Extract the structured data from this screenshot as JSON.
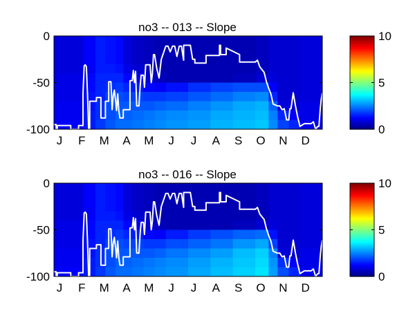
{
  "chart_data": [
    {
      "type": "heatmap",
      "title": "no3 -- 013 -- Slope",
      "months": [
        "J",
        "F",
        "M",
        "A",
        "M",
        "J",
        "J",
        "A",
        "S",
        "O",
        "N",
        "D"
      ],
      "ylim": [
        -100,
        0
      ],
      "yticks": [
        "0",
        "-50",
        "-100"
      ],
      "clim": [
        0,
        10
      ],
      "colorbar_ticks": [
        "10",
        "5",
        "0"
      ],
      "colormap": "jet",
      "columns": [
        {
          "start": 0.0,
          "values": [
            0.9,
            0.9,
            0.9,
            0.9,
            1.0,
            1.0,
            1.0,
            1.1,
            1.1,
            1.2
          ]
        },
        {
          "start": 1.3,
          "values": [
            1.2,
            1.2,
            1.2,
            1.2,
            1.3,
            1.3,
            1.4,
            1.4,
            1.5,
            1.5
          ]
        },
        {
          "start": 1.85,
          "values": [
            1.5,
            1.5,
            1.5,
            1.5,
            1.6,
            1.6,
            1.6,
            1.7,
            1.7,
            1.8
          ]
        },
        {
          "start": 2.3,
          "values": [
            1.4,
            1.4,
            1.4,
            1.5,
            1.6,
            1.7,
            1.9,
            2.0,
            2.0,
            2.1
          ]
        },
        {
          "start": 2.75,
          "values": [
            1.3,
            1.3,
            1.3,
            1.4,
            1.6,
            1.8,
            2.0,
            2.1,
            2.2,
            2.3
          ]
        },
        {
          "start": 3.1,
          "values": [
            0.9,
            0.9,
            0.9,
            1.0,
            1.3,
            1.6,
            1.9,
            2.1,
            2.2,
            2.3
          ]
        },
        {
          "start": 3.5,
          "values": [
            0.7,
            0.7,
            0.7,
            0.8,
            1.1,
            1.5,
            1.9,
            2.1,
            2.3,
            2.4
          ]
        },
        {
          "start": 4.0,
          "values": [
            0.6,
            0.6,
            0.6,
            0.6,
            0.8,
            1.3,
            1.8,
            2.1,
            2.4,
            2.5
          ]
        },
        {
          "start": 4.5,
          "values": [
            0.5,
            0.5,
            0.5,
            0.5,
            0.6,
            1.2,
            1.8,
            2.2,
            2.5,
            2.6
          ]
        },
        {
          "start": 5.0,
          "values": [
            0.5,
            0.5,
            0.5,
            0.5,
            0.5,
            1.4,
            1.9,
            2.3,
            2.6,
            2.7
          ]
        },
        {
          "start": 6.0,
          "values": [
            0.5,
            0.5,
            0.5,
            0.5,
            0.5,
            1.7,
            2.1,
            2.5,
            2.7,
            2.8
          ]
        },
        {
          "start": 7.0,
          "values": [
            0.5,
            0.5,
            0.5,
            0.5,
            0.5,
            1.9,
            2.3,
            2.7,
            2.9,
            3.0
          ]
        },
        {
          "start": 8.0,
          "values": [
            0.5,
            0.5,
            0.5,
            0.5,
            0.6,
            2.0,
            2.5,
            2.9,
            3.0,
            3.1
          ]
        },
        {
          "start": 9.0,
          "values": [
            0.6,
            0.6,
            0.6,
            0.6,
            0.8,
            2.0,
            2.6,
            3.0,
            3.1,
            3.2
          ]
        },
        {
          "start": 9.6,
          "values": [
            0.8,
            0.8,
            0.8,
            0.8,
            0.9,
            1.2,
            1.6,
            2.2,
            2.5,
            2.6
          ]
        },
        {
          "start": 10.0,
          "values": [
            0.8,
            0.8,
            0.8,
            0.8,
            0.8,
            0.8,
            0.8,
            0.9,
            1.6,
            1.9
          ]
        },
        {
          "start": 10.5,
          "values": [
            0.8,
            0.8,
            0.8,
            0.8,
            0.8,
            0.8,
            0.8,
            0.8,
            1.2,
            1.6
          ]
        },
        {
          "start": 11.0,
          "values": [
            0.9,
            0.9,
            0.9,
            0.9,
            0.9,
            0.9,
            0.9,
            1.0,
            1.0,
            1.1
          ]
        }
      ],
      "line": {
        "color": "#ffffff",
        "x": [
          0.0,
          0.1,
          0.1,
          0.15,
          0.15,
          0.75,
          0.75,
          1.1,
          1.1,
          1.3,
          1.3,
          1.35,
          1.4,
          1.45,
          1.5,
          1.55,
          1.6,
          1.6,
          1.9,
          1.9,
          2.1,
          2.1,
          2.2,
          2.3,
          2.3,
          2.45,
          2.45,
          2.55,
          2.6,
          2.65,
          2.7,
          2.75,
          2.8,
          2.85,
          2.9,
          2.95,
          3.0,
          3.1,
          3.1,
          3.4,
          3.4,
          3.5,
          3.55,
          3.6,
          3.65,
          3.7,
          3.8,
          3.85,
          3.9,
          4.0,
          4.05,
          4.1,
          4.2,
          4.3,
          4.35,
          4.4,
          4.45,
          4.5,
          4.6,
          4.7,
          4.75,
          4.8,
          5.0,
          5.1,
          5.2,
          5.3,
          5.4,
          5.5,
          5.6,
          5.7,
          5.8,
          5.8,
          6.1,
          6.2,
          6.3,
          6.3,
          6.8,
          6.8,
          7.4,
          7.4,
          7.45,
          7.45,
          7.7,
          7.7,
          8.3,
          8.3,
          9.0,
          9.1,
          9.2,
          9.3,
          9.4,
          9.5,
          9.6,
          9.7,
          9.8,
          10.0,
          10.1,
          10.2,
          10.3,
          10.4,
          10.5,
          10.55,
          10.6,
          10.7,
          10.8,
          10.9,
          11.0,
          11.2,
          11.3,
          11.4,
          11.5,
          11.6,
          11.7,
          11.8,
          11.85,
          11.9,
          11.95,
          12.0
        ],
        "y": [
          -95,
          -95,
          -100,
          -100,
          -96,
          -96,
          -100,
          -100,
          -96,
          -96,
          -62,
          -32,
          -31,
          -33,
          -62,
          -99,
          -99,
          -70,
          -70,
          -66,
          -66,
          -88,
          -88,
          -88,
          -70,
          -70,
          -49,
          -49,
          -79,
          -64,
          -58,
          -68,
          -80,
          -62,
          -80,
          -88,
          -88,
          -88,
          -79,
          -79,
          -48,
          -48,
          -37,
          -50,
          -38,
          -75,
          -75,
          -55,
          -42,
          -42,
          -55,
          -31,
          -31,
          -31,
          -50,
          -41,
          -20,
          -20,
          -35,
          -45,
          -35,
          -25,
          -11,
          -11,
          -17,
          -11,
          -11,
          -22,
          -11,
          -11,
          -26,
          -10,
          -10,
          -25,
          -25,
          -29,
          -29,
          -21,
          -21,
          -10,
          -10,
          -20,
          -20,
          -13,
          -20,
          -28,
          -28,
          -26,
          -33,
          -36,
          -39,
          -49,
          -56,
          -62,
          -73,
          -75,
          -75,
          -79,
          -78,
          -90,
          -90,
          -78,
          -78,
          -61,
          -75,
          -87,
          -97,
          -94,
          -94,
          -94,
          -94,
          -92,
          -100,
          -97,
          -97,
          -80,
          -68,
          -61,
          -61,
          -60
        ]
      }
    },
    {
      "type": "heatmap",
      "title": "no3 -- 016 -- Slope",
      "months": [
        "J",
        "F",
        "M",
        "A",
        "M",
        "J",
        "J",
        "A",
        "S",
        "O",
        "N",
        "D"
      ],
      "ylim": [
        -100,
        0
      ],
      "yticks": [
        "0",
        "-50",
        "-100"
      ],
      "clim": [
        0,
        10
      ],
      "colorbar_ticks": [
        "10",
        "5",
        "0"
      ],
      "colormap": "jet",
      "columns": [
        {
          "start": 0.0,
          "values": [
            0.9,
            0.9,
            0.9,
            0.9,
            1.0,
            1.0,
            1.0,
            1.1,
            1.1,
            1.2
          ]
        },
        {
          "start": 1.3,
          "values": [
            1.2,
            1.2,
            1.2,
            1.2,
            1.3,
            1.3,
            1.4,
            1.4,
            1.5,
            1.5
          ]
        },
        {
          "start": 1.85,
          "values": [
            1.5,
            1.5,
            1.5,
            1.5,
            1.6,
            1.6,
            1.6,
            1.7,
            1.7,
            1.8
          ]
        },
        {
          "start": 2.3,
          "values": [
            1.4,
            1.4,
            1.4,
            1.5,
            1.6,
            1.7,
            1.9,
            2.0,
            2.0,
            2.1
          ]
        },
        {
          "start": 2.75,
          "values": [
            1.3,
            1.3,
            1.3,
            1.4,
            1.6,
            1.8,
            2.0,
            2.1,
            2.2,
            2.3
          ]
        },
        {
          "start": 3.1,
          "values": [
            0.9,
            0.9,
            0.9,
            1.0,
            1.3,
            1.6,
            1.9,
            2.1,
            2.2,
            2.3
          ]
        },
        {
          "start": 3.5,
          "values": [
            0.7,
            0.7,
            0.7,
            0.8,
            1.1,
            1.5,
            1.9,
            2.1,
            2.3,
            2.4
          ]
        },
        {
          "start": 4.0,
          "values": [
            0.6,
            0.6,
            0.6,
            0.6,
            0.8,
            1.3,
            1.8,
            2.1,
            2.4,
            2.5
          ]
        },
        {
          "start": 4.5,
          "values": [
            0.5,
            0.5,
            0.5,
            0.5,
            0.6,
            1.2,
            1.8,
            2.2,
            2.5,
            2.6
          ]
        },
        {
          "start": 5.0,
          "values": [
            0.5,
            0.5,
            0.5,
            0.5,
            0.5,
            1.5,
            2.0,
            2.4,
            2.6,
            2.7
          ]
        },
        {
          "start": 6.0,
          "values": [
            0.5,
            0.5,
            0.5,
            0.5,
            0.5,
            1.8,
            2.2,
            2.6,
            2.8,
            2.9
          ]
        },
        {
          "start": 7.0,
          "values": [
            0.5,
            0.5,
            0.5,
            0.5,
            0.5,
            2.0,
            2.4,
            2.8,
            3.0,
            3.1
          ]
        },
        {
          "start": 8.0,
          "values": [
            0.5,
            0.5,
            0.5,
            0.5,
            0.6,
            2.2,
            2.7,
            3.1,
            3.2,
            3.3
          ]
        },
        {
          "start": 9.0,
          "values": [
            0.6,
            0.6,
            0.6,
            0.6,
            0.8,
            2.3,
            2.9,
            3.3,
            3.4,
            3.5
          ]
        },
        {
          "start": 9.6,
          "values": [
            0.8,
            0.8,
            0.8,
            0.8,
            0.9,
            1.4,
            1.9,
            2.5,
            2.7,
            2.8
          ]
        },
        {
          "start": 10.0,
          "values": [
            0.8,
            0.8,
            0.8,
            0.8,
            0.8,
            0.8,
            0.8,
            0.9,
            1.7,
            2.0
          ]
        },
        {
          "start": 10.5,
          "values": [
            0.8,
            0.8,
            0.8,
            0.8,
            0.8,
            0.8,
            0.8,
            0.8,
            1.2,
            1.6
          ]
        },
        {
          "start": 11.0,
          "values": [
            0.9,
            0.9,
            0.9,
            0.9,
            0.9,
            0.9,
            0.9,
            1.0,
            1.0,
            1.1
          ]
        }
      ],
      "line": {
        "color": "#ffffff",
        "x": [
          0.0,
          0.1,
          0.1,
          0.15,
          0.15,
          0.75,
          0.75,
          1.1,
          1.1,
          1.3,
          1.3,
          1.35,
          1.4,
          1.45,
          1.5,
          1.55,
          1.6,
          1.6,
          1.9,
          1.9,
          2.1,
          2.1,
          2.2,
          2.3,
          2.3,
          2.45,
          2.45,
          2.55,
          2.6,
          2.65,
          2.7,
          2.75,
          2.8,
          2.85,
          2.9,
          2.95,
          3.0,
          3.1,
          3.1,
          3.4,
          3.4,
          3.5,
          3.55,
          3.6,
          3.65,
          3.7,
          3.8,
          3.85,
          3.9,
          4.0,
          4.05,
          4.1,
          4.2,
          4.3,
          4.35,
          4.4,
          4.45,
          4.5,
          4.6,
          4.7,
          4.75,
          4.8,
          5.0,
          5.1,
          5.2,
          5.3,
          5.4,
          5.5,
          5.6,
          5.7,
          5.8,
          5.8,
          6.1,
          6.2,
          6.3,
          6.3,
          6.8,
          6.8,
          7.4,
          7.4,
          7.45,
          7.45,
          7.7,
          7.7,
          8.3,
          8.3,
          9.0,
          9.1,
          9.2,
          9.3,
          9.4,
          9.5,
          9.6,
          9.7,
          9.8,
          10.0,
          10.1,
          10.2,
          10.3,
          10.4,
          10.5,
          10.55,
          10.6,
          10.7,
          10.8,
          10.9,
          11.0,
          11.2,
          11.3,
          11.4,
          11.5,
          11.6,
          11.7,
          11.8,
          11.85,
          11.9,
          11.95,
          12.0
        ],
        "y": [
          -95,
          -95,
          -100,
          -100,
          -96,
          -96,
          -100,
          -100,
          -96,
          -96,
          -62,
          -32,
          -31,
          -33,
          -62,
          -99,
          -99,
          -70,
          -70,
          -66,
          -66,
          -88,
          -88,
          -88,
          -70,
          -70,
          -49,
          -49,
          -79,
          -64,
          -58,
          -68,
          -80,
          -62,
          -80,
          -88,
          -88,
          -88,
          -79,
          -79,
          -48,
          -48,
          -37,
          -50,
          -38,
          -75,
          -75,
          -55,
          -42,
          -42,
          -55,
          -31,
          -31,
          -31,
          -50,
          -41,
          -20,
          -20,
          -35,
          -45,
          -35,
          -25,
          -11,
          -11,
          -17,
          -11,
          -11,
          -22,
          -11,
          -11,
          -26,
          -10,
          -10,
          -25,
          -25,
          -29,
          -29,
          -21,
          -21,
          -10,
          -10,
          -20,
          -20,
          -13,
          -20,
          -28,
          -28,
          -26,
          -33,
          -36,
          -39,
          -49,
          -56,
          -62,
          -73,
          -75,
          -75,
          -79,
          -78,
          -90,
          -90,
          -78,
          -78,
          -61,
          -75,
          -87,
          -97,
          -94,
          -94,
          -94,
          -94,
          -92,
          -100,
          -97,
          -97,
          -80,
          -68,
          -61,
          -61,
          -60
        ]
      }
    }
  ]
}
